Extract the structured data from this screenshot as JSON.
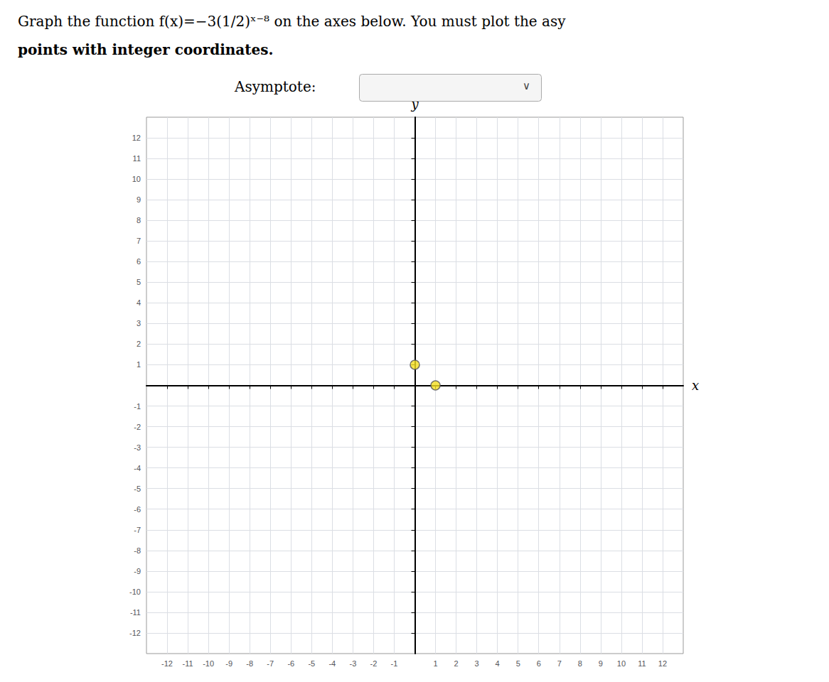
{
  "chart_data": {
    "type": "scatter",
    "title": "Graph the function f(x)=−3(1/2)ˣ⁻⁸ on the axes below. You must plot the asy",
    "subtitle": "points with integer coordinates.",
    "annotations": [
      "Asymptote:",
      "∨"
    ],
    "xlabel": "x",
    "ylabel": "y",
    "x": [
      0,
      1
    ],
    "values": [
      1,
      0
    ],
    "color": "#f5e020",
    "marker": "circle",
    "xlim": [
      -13,
      13
    ],
    "ylim": [
      -13,
      13
    ],
    "xticks": [
      -12,
      -11,
      -10,
      -9,
      -8,
      -7,
      -6,
      -5,
      -4,
      -3,
      -2,
      -1,
      1,
      2,
      3,
      4,
      5,
      6,
      7,
      8,
      9,
      10,
      11,
      12
    ],
    "yticks": [
      -12,
      -11,
      -10,
      -9,
      -8,
      -7,
      -6,
      -5,
      -4,
      -3,
      -2,
      -1,
      1,
      2,
      3,
      4,
      5,
      6,
      7,
      8,
      9,
      10,
      11,
      12
    ],
    "grid": true
  }
}
